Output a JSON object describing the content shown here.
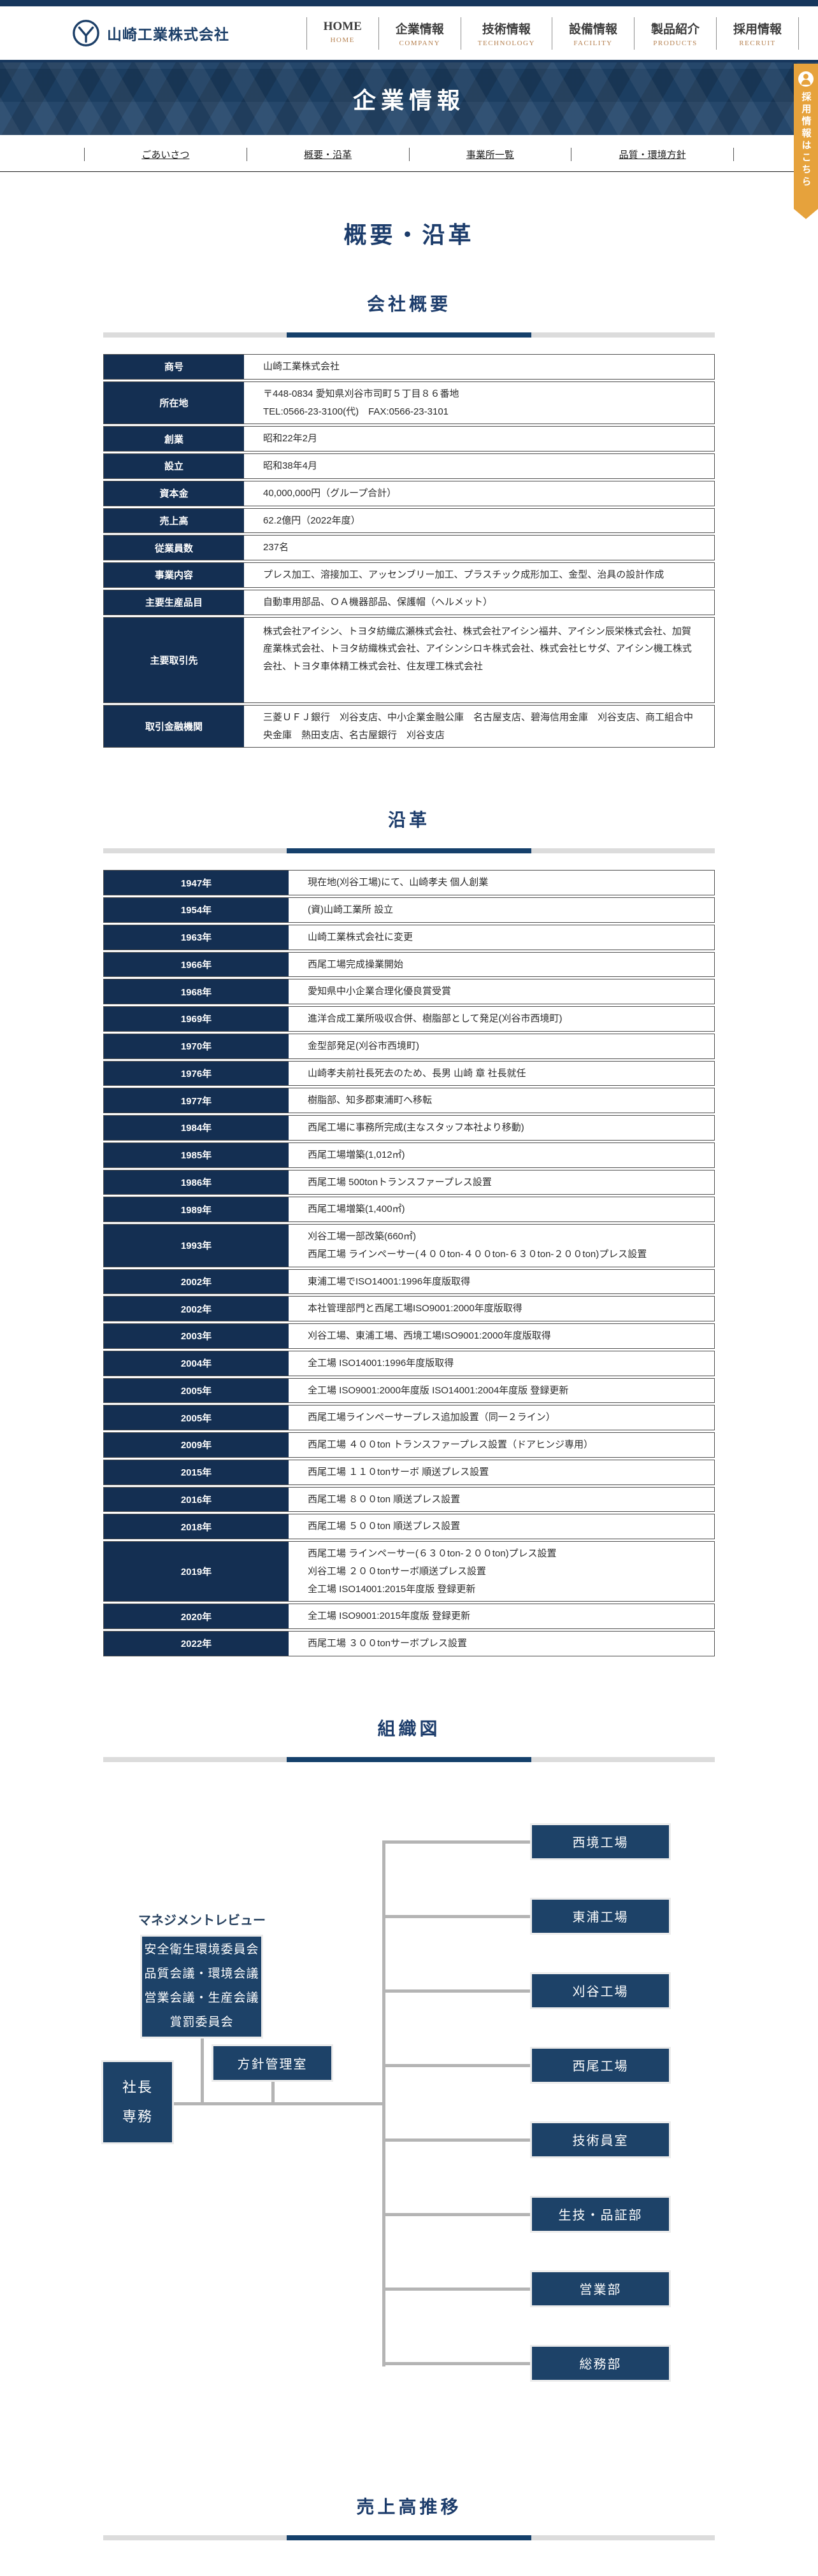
{
  "brand": {
    "company_name": "山崎工業株式会社",
    "colors": {
      "navy": "#1d4268",
      "navy_dark": "#142f52",
      "banner_navy": "#1e4166",
      "accent_orange": "#e6a23c",
      "nav_sub_tan": "#b5804f",
      "connector_gray": "#b4b4b4"
    }
  },
  "header": {
    "nav": [
      {
        "label": "HOME",
        "sub": "HOME"
      },
      {
        "label": "企業情報",
        "sub": "COMPANY"
      },
      {
        "label": "技術情報",
        "sub": "TECHNOLOGY"
      },
      {
        "label": "設備情報",
        "sub": "FACILITY"
      },
      {
        "label": "製品紹介",
        "sub": "PRODUCTS"
      },
      {
        "label": "採用情報",
        "sub": "RECRUIT"
      }
    ]
  },
  "banner": {
    "title": "企業情報"
  },
  "ribbon": {
    "text": "採用情報はこちら",
    "icon": "person-icon"
  },
  "subnav": {
    "links": [
      {
        "label": "ごあいさつ"
      },
      {
        "label": "概要・沿革"
      },
      {
        "label": "事業所一覧"
      },
      {
        "label": "品質・環境方針"
      }
    ]
  },
  "page": {
    "title": "概要・沿革"
  },
  "company_overview": {
    "section_title": "会社概要",
    "rows": [
      {
        "label": "商号",
        "lines": [
          "山崎工業株式会社"
        ]
      },
      {
        "label": "所在地",
        "lines": [
          "〒448-0834 愛知県刈谷市司町５丁目８６番地",
          "TEL:0566-23-3100(代)　FAX:0566-23-3101"
        ]
      },
      {
        "label": "創業",
        "lines": [
          "昭和22年2月"
        ]
      },
      {
        "label": "設立",
        "lines": [
          "昭和38年4月"
        ]
      },
      {
        "label": "資本金",
        "lines": [
          "40,000,000円（グループ合計）"
        ]
      },
      {
        "label": "売上高",
        "lines": [
          "62.2億円（2022年度）"
        ]
      },
      {
        "label": "従業員数",
        "lines": [
          "237名"
        ]
      },
      {
        "label": "事業内容",
        "lines": [
          "プレス加工、溶接加工、アッセンブリー加工、プラスチック成形加工、金型、治具の設計作成"
        ]
      },
      {
        "label": "主要生産品目",
        "lines": [
          "自動車用部品、ＯＡ機器部品、保護帽（ヘルメット）"
        ]
      },
      {
        "label": "主要取引先",
        "lines": [
          "株式会社アイシン、トヨタ紡織広瀬株式会社、株式会社アイシン福井、アイシン辰栄株式会社、加賀産業株式会社、トヨタ紡織株式会社、アイシンシロキ株式会社、株式会社ヒサダ、アイシン機工株式会社、トヨタ車体精工株式会社、住友理工株式会社"
        ]
      },
      {
        "label": "取引金融機関",
        "lines": [
          "三菱ＵＦＪ銀行　刈谷支店、中小企業金融公庫　名古屋支店、碧海信用金庫　刈谷支店、商工組合中央金庫　熱田支店、名古屋銀行　刈谷支店"
        ]
      }
    ]
  },
  "history": {
    "section_title": "沿革",
    "rows": [
      {
        "label": "1947年",
        "lines": [
          "現在地(刈谷工場)にて、山崎孝夫 個人創業"
        ]
      },
      {
        "label": "1954年",
        "lines": [
          "(資)山崎工業所 設立"
        ]
      },
      {
        "label": "1963年",
        "lines": [
          "山崎工業株式会社に変更"
        ]
      },
      {
        "label": "1966年",
        "lines": [
          "西尾工場完成操業開始"
        ]
      },
      {
        "label": "1968年",
        "lines": [
          "愛知県中小企業合理化優良賞受賞"
        ]
      },
      {
        "label": "1969年",
        "lines": [
          "進洋合成工業所吸収合併、樹脂部として発足(刈谷市西境町)"
        ]
      },
      {
        "label": "1970年",
        "lines": [
          "金型部発足(刈谷市西境町)"
        ]
      },
      {
        "label": "1976年",
        "lines": [
          "山崎孝夫前社長死去のため、長男 山崎 章 社長就任"
        ]
      },
      {
        "label": "1977年",
        "lines": [
          "樹脂部、知多郡東浦町へ移転"
        ]
      },
      {
        "label": "1984年",
        "lines": [
          "西尾工場に事務所完成(主なスタッフ本社より移動)"
        ]
      },
      {
        "label": "1985年",
        "lines": [
          "西尾工場増築(1,012㎡)"
        ]
      },
      {
        "label": "1986年",
        "lines": [
          "西尾工場 500tonトランスファープレス設置"
        ]
      },
      {
        "label": "1989年",
        "lines": [
          "西尾工場増築(1,400㎡)"
        ]
      },
      {
        "label": "1993年",
        "lines": [
          "刈谷工場一部改築(660㎡)",
          "西尾工場 ラインペーサー(４００ton-４００ton-６３０ton-２００ton)プレス設置"
        ]
      },
      {
        "label": "2002年",
        "lines": [
          "東浦工場でISO14001:1996年度版取得"
        ]
      },
      {
        "label": "2002年",
        "lines": [
          "本社管理部門と西尾工場ISO9001:2000年度版取得"
        ]
      },
      {
        "label": "2003年",
        "lines": [
          "刈谷工場、東浦工場、西境工場ISO9001:2000年度版取得"
        ]
      },
      {
        "label": "2004年",
        "lines": [
          "全工場 ISO14001:1996年度版取得"
        ]
      },
      {
        "label": "2005年",
        "lines": [
          "全工場 ISO9001:2000年度版 ISO14001:2004年度版 登録更新"
        ]
      },
      {
        "label": "2005年",
        "lines": [
          "西尾工場ラインペーサープレス追加設置（同一２ライン）"
        ]
      },
      {
        "label": "2009年",
        "lines": [
          "西尾工場 ４００ton トランスファープレス設置（ドアヒンジ専用）"
        ]
      },
      {
        "label": "2015年",
        "lines": [
          "西尾工場 １１０tonサーボ 順送プレス設置"
        ]
      },
      {
        "label": "2016年",
        "lines": [
          "西尾工場 ８００ton 順送プレス設置"
        ]
      },
      {
        "label": "2018年",
        "lines": [
          "西尾工場 ５００ton 順送プレス設置"
        ]
      },
      {
        "label": "2019年",
        "lines": [
          "西尾工場 ラインペーサー(６３０ton-２００ton)プレス設置",
          "刈谷工場 ２００tonサーボ順送プレス設置",
          "全工場 ISO14001:2015年度版 登録更新"
        ]
      },
      {
        "label": "2020年",
        "lines": [
          "全工場 ISO9001:2015年度版 登録更新"
        ]
      },
      {
        "label": "2022年",
        "lines": [
          "西尾工場 ３００tonサーボプレス設置"
        ]
      }
    ]
  },
  "org_chart": {
    "section_title": "組織図",
    "management_review_label": "マネジメントレビュー",
    "management_review_items": [
      "安全衛生環境委員会",
      "品質会議・環境会議",
      "営業会議・生産会議",
      "賞罰委員会"
    ],
    "president_lines": [
      "社長",
      "専務"
    ],
    "policy_office": "方針管理室",
    "departments": [
      "西境工場",
      "東浦工場",
      "刈谷工場",
      "西尾工場",
      "技術員室",
      "生技・品証部",
      "営業部",
      "総務部"
    ]
  },
  "sales_trend": {
    "section_title": "売上高推移"
  }
}
